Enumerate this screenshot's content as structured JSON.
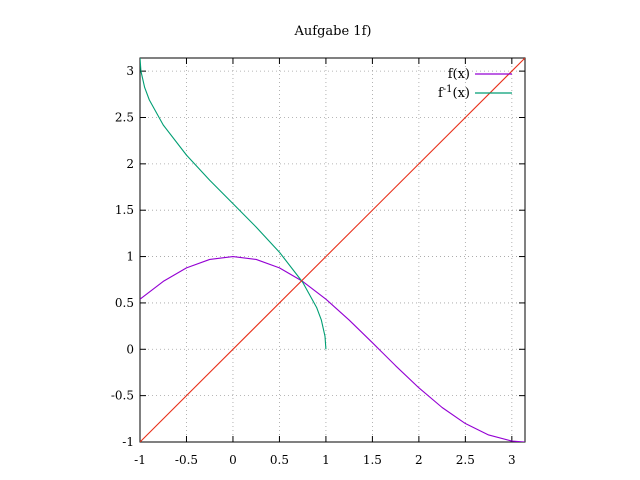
{
  "chart_data": {
    "type": "line",
    "title": "Aufgabe 1f)",
    "xlabel": "",
    "ylabel": "",
    "xlim": [
      -1,
      3.14159
    ],
    "ylim": [
      -1,
      3.14159
    ],
    "grid": true,
    "legend_position": "top-right",
    "x_ticks": [
      "-1",
      "-0.5",
      "0",
      "0.5",
      "1",
      "1.5",
      "2",
      "2.5",
      "3"
    ],
    "y_ticks": [
      "-1",
      "-0.5",
      "0",
      "0.5",
      "1",
      "1.5",
      "2",
      "2.5",
      "3"
    ],
    "series": [
      {
        "name": "f(x)",
        "color": "#9400d3",
        "x": [
          -1,
          -0.75,
          -0.5,
          -0.25,
          0,
          0.25,
          0.5,
          0.75,
          1,
          1.25,
          1.5,
          1.75,
          2,
          2.25,
          2.5,
          2.75,
          3,
          3.14
        ],
        "y": [
          0.54,
          0.732,
          0.878,
          0.969,
          1,
          0.969,
          0.878,
          0.732,
          0.54,
          0.315,
          0.071,
          -0.178,
          -0.416,
          -0.628,
          -0.801,
          -0.924,
          -0.99,
          -1
        ]
      },
      {
        "name": "f⁻¹(x)",
        "legend_base": "f",
        "legend_sup": "-1",
        "legend_tail": "(x)",
        "color": "#009e73",
        "x": [
          -1,
          -0.99,
          -0.95,
          -0.9,
          -0.75,
          -0.5,
          -0.25,
          0,
          0.25,
          0.5,
          0.75,
          0.9,
          0.95,
          0.99,
          1
        ],
        "y": [
          3.142,
          3.0,
          2.824,
          2.69,
          2.419,
          2.094,
          1.823,
          1.571,
          1.318,
          1.047,
          0.723,
          0.451,
          0.318,
          0.141,
          0
        ]
      },
      {
        "color": "#e8301a",
        "x": [
          -1,
          3.14
        ],
        "y": [
          -1,
          3.14
        ]
      }
    ]
  }
}
